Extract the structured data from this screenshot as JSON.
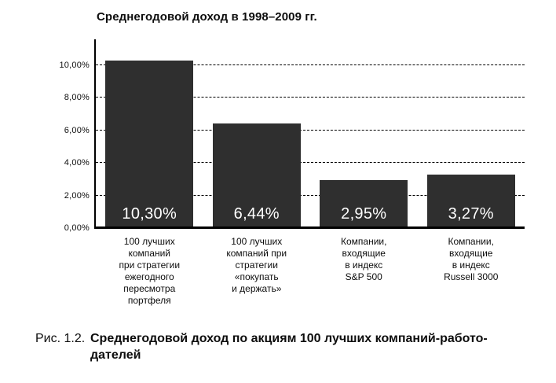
{
  "figure": {
    "title": "Среднегодовой доход в 1998–2009 гг.",
    "caption_label": "Рис. 1.2.",
    "caption_text": "Среднегодовой доход по акциям 100 лучших компаний-работо-\nдателей"
  },
  "chart_data": {
    "type": "bar",
    "title": "Среднегодовой доход в 1998–2009 гг.",
    "xlabel": "",
    "ylabel": "",
    "categories": [
      "100 лучших\nкомпаний\nпри стратегии\nежегодного\nпересмотра\nпортфеля",
      "100 лучших\nкомпаний при\nстратегии\n«покупать\nи держать»",
      "Компании,\nвходящие\nв индекс\nS&P 500",
      "Компании,\nвходящие\nв индекс\nRussell 3000"
    ],
    "values": [
      10.3,
      6.44,
      2.95,
      3.27
    ],
    "value_labels": [
      "10,30%",
      "6,44%",
      "2,95%",
      "3,27%"
    ],
    "yticks": [
      {
        "value": 0,
        "label": "0,00%"
      },
      {
        "value": 2,
        "label": "2,00%"
      },
      {
        "value": 4,
        "label": "4,00%"
      },
      {
        "value": 6,
        "label": "6,00%"
      },
      {
        "value": 8,
        "label": "8,00%"
      },
      {
        "value": 10,
        "label": "10,00%"
      }
    ],
    "ylim": [
      0,
      11.6
    ],
    "grid": "horizontal-dashed",
    "legend": "none",
    "bar_color": "#2f2f2f",
    "value_label_color": "#ffffff"
  }
}
